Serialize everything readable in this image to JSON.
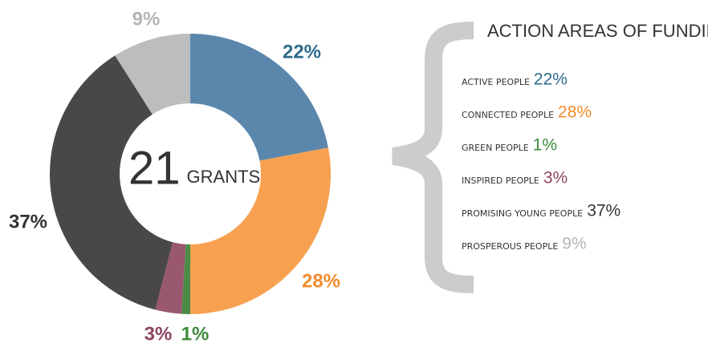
{
  "chart_data": {
    "type": "donut",
    "title": "ACTION AREAS OF FUNDING",
    "center_value": "21",
    "center_label": "GRANTS",
    "categories": [
      "ACTIVE PEOPLE",
      "CONNECTED PEOPLE",
      "GREEN PEOPLE",
      "INSPIRED PEOPLE",
      "PROMISING YOUNG PEOPLE",
      "PROSPEROUS PEOPLE"
    ],
    "values": [
      22,
      28,
      1,
      3,
      37,
      9
    ],
    "value_labels": [
      "22%",
      "28%",
      "1%",
      "3%",
      "37%",
      "9%"
    ],
    "colors": [
      "#5b87ad",
      "#f7a150",
      "#4a8c45",
      "#9a5770",
      "#4a4847",
      "#bcbdbf"
    ],
    "label_colors": [
      "#2e6b8e",
      "#f38b2c",
      "#3f8a3b",
      "#8e4563",
      "#333333",
      "#b3b4b6"
    ]
  }
}
